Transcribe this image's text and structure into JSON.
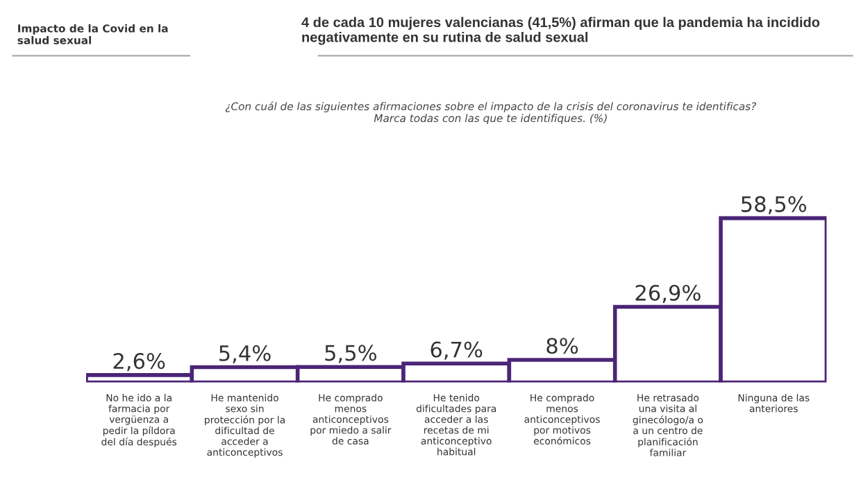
{
  "chart_data": {
    "type": "bar",
    "title": "4 de cada 10 mujeres valencianas (41,5%) afirman que la pandemia ha incidido\nnegativamente en su rutina de salud sexual",
    "subtitle": "¿Con cuál de las siguientes afirmaciones sobre el impacto de la crisis del coronavirus te identificas?\nMarca todas con las que te identifiques. (%)",
    "annotations": [
      "Impacto de la Covid en la\nsalud sexual"
    ],
    "categories": [
      "No he ido a la\nfarmacia por\nvergüenza a\npedir la píldora\ndel día después",
      "He mantenido\nsexo sin\nprotección por la\ndificultad de\nacceder a\nanticonceptivos",
      "He comprado\nmenos\nanticonceptivos\npor miedo a salir\nde casa",
      "He tenido\ndificultades para\nacceder a las\nrecetas de mi\nanticonceptivo\nhabitual",
      "He comprado\nmenos\nanticonceptivos\npor motivos\neconómicos",
      "He retrasado\nuna visita al\nginecólogo/a o\na un centro de\nplanificación\nfamiliar",
      "Ninguna de las\nanteriores"
    ],
    "values": [
      2.6,
      5.4,
      5.5,
      6.7,
      8,
      26.9,
      58.5
    ],
    "value_labels": [
      "2,6%",
      "5,4%",
      "5,5%",
      "6,7%",
      "8%",
      "26,9%",
      "58,5%"
    ],
    "color": "#4b2577",
    "grid": false,
    "legend": false
  }
}
